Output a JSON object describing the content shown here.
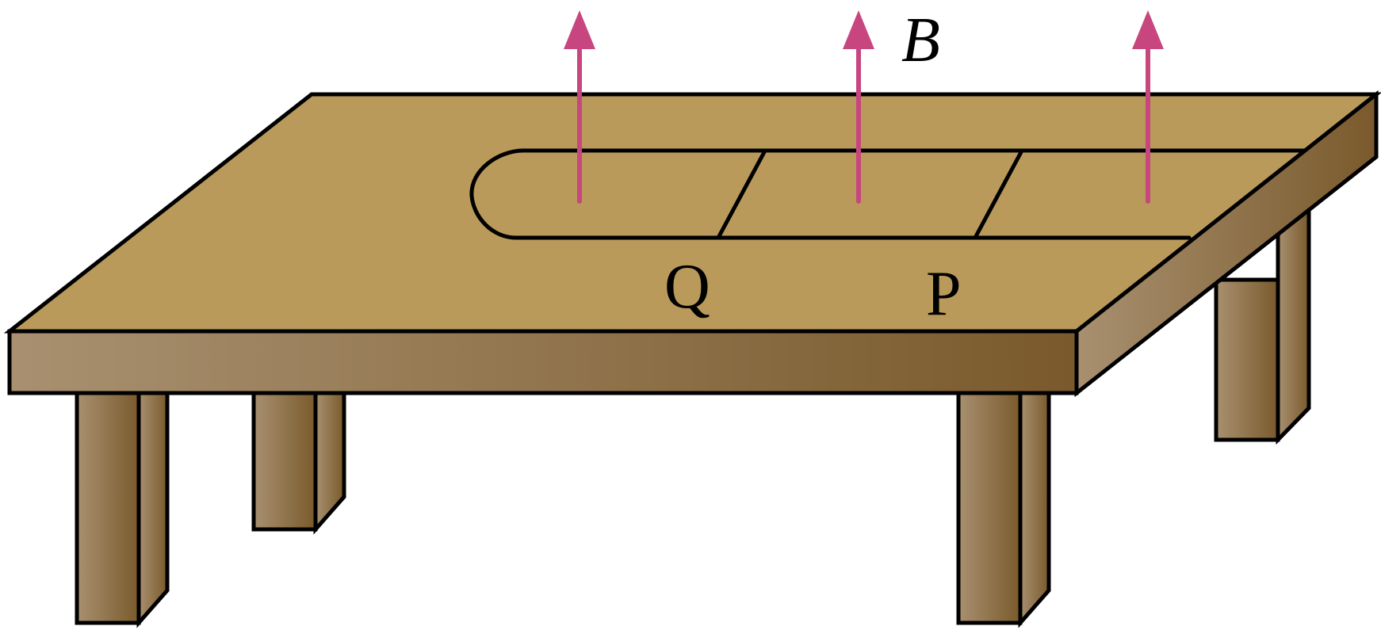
{
  "field_label": "B",
  "rod_labels": {
    "q": "Q",
    "p": "P"
  },
  "colors": {
    "tabletop": "#b99a5a",
    "wood_light": "#a89070",
    "wood_dark": "#7a5a2c",
    "field_arrow": "#c8467f",
    "outline": "#000000"
  },
  "field_arrow_count": 3,
  "field_direction": "up"
}
